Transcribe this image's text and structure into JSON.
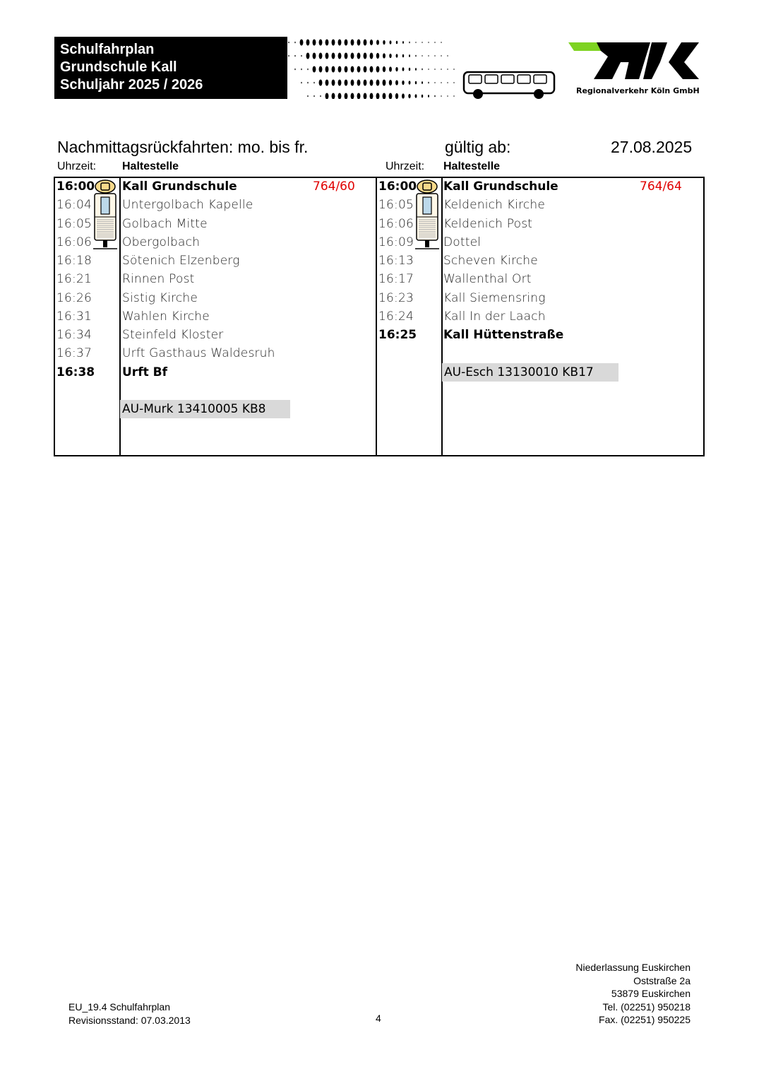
{
  "header": {
    "title_lines": [
      "Schulfahrplan",
      "Grundschule Kall",
      "Schuljahr 2025 / 2026"
    ],
    "logo_text": "Regionalverkehr Köln GmbH",
    "logo_letters": "RVK"
  },
  "section": {
    "title": "Nachmittagsrückfahrten: mo. bis fr.",
    "valid_label": "gültig ab:",
    "valid_date": "27.08.2025",
    "col_time": "Uhrzeit:",
    "col_stop": "Haltestelle"
  },
  "routes": [
    {
      "line": "764/60",
      "stops": [
        {
          "time": "16:00",
          "stop": "Kall Grundschule",
          "bold": true
        },
        {
          "time": "16:04",
          "stop": "Untergolbach Kapelle"
        },
        {
          "time": "16:05",
          "stop": "Golbach Mitte"
        },
        {
          "time": "16:06",
          "stop": "Obergolbach"
        },
        {
          "time": "16:18",
          "stop": "Sötenich Elzenberg"
        },
        {
          "time": "16:21",
          "stop": "Rinnen Post"
        },
        {
          "time": "16:26",
          "stop": "Sistig Kirche"
        },
        {
          "time": "16:31",
          "stop": "Wahlen Kirche"
        },
        {
          "time": "16:34",
          "stop": "Steinfeld Kloster"
        },
        {
          "time": "16:37",
          "stop": "Urft Gasthaus Waldesruh"
        },
        {
          "time": "16:38",
          "stop": "Urft Bf",
          "bold": true
        }
      ],
      "au": "AU-Murk 13410005 KB8"
    },
    {
      "line": "764/64",
      "stops": [
        {
          "time": "16:00",
          "stop": "Kall Grundschule",
          "bold": true
        },
        {
          "time": "16:05",
          "stop": "Keldenich Kirche"
        },
        {
          "time": "16:06",
          "stop": "Keldenich Post"
        },
        {
          "time": "16:09",
          "stop": "Dottel"
        },
        {
          "time": "16:13",
          "stop": "Scheven Kirche"
        },
        {
          "time": "16:17",
          "stop": "Wallenthal Ort"
        },
        {
          "time": "16:23",
          "stop": "Kall Siemensring"
        },
        {
          "time": "16:24",
          "stop": "Kall In der Laach"
        },
        {
          "time": "16:25",
          "stop": "Kall Hüttenstraße",
          "bold": true
        }
      ],
      "au": "AU-Esch 13130010 KB17"
    }
  ],
  "footer": {
    "doc_id": "EU_19.4 Schulfahrplan",
    "revision": "Revisionsstand: 07.03.2013",
    "page": "4",
    "address": [
      "Niederlassung Euskirchen",
      "Oststraße 2a",
      "53879 Euskirchen",
      "Tel. (02251) 950218",
      "Fax. (02251) 950225"
    ]
  },
  "colors": {
    "line_number": "#e00000",
    "au_bg": "#d9d9d9",
    "logo_green": "#7ed321"
  }
}
